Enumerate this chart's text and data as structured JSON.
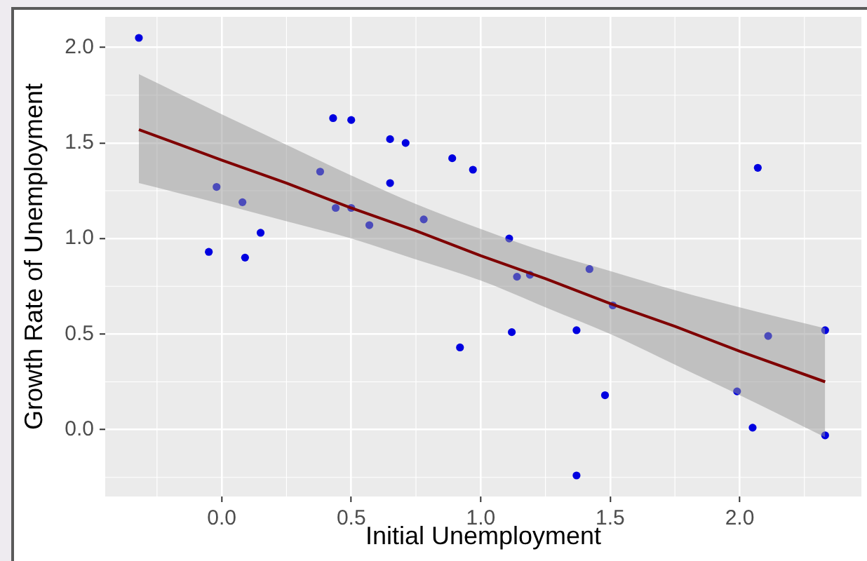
{
  "chart_data": {
    "type": "scatter",
    "xlabel": "Initial Unemployment",
    "ylabel": "Growth Rate of Unemployment",
    "xlim": [
      -0.45,
      2.47
    ],
    "ylim": [
      -0.35,
      2.16
    ],
    "xticks": [
      {
        "value": 0,
        "label": "0.0"
      },
      0.5,
      {
        "value": 1,
        "label": "1.0"
      },
      1.5,
      {
        "value": 2,
        "label": "2.0"
      }
    ],
    "yticks": [
      {
        "value": 0,
        "label": "0.0"
      },
      0.5,
      {
        "value": 1,
        "label": "1.0"
      },
      1.5,
      {
        "value": 2,
        "label": "2.0"
      }
    ],
    "grid": true,
    "marker": "circle",
    "line_style": "solid",
    "series": [
      {
        "color": "#0000e0",
        "x": [
          -0.32,
          -0.05,
          -0.02,
          0.08,
          0.09,
          0.15,
          0.38,
          0.43,
          0.44,
          0.5,
          0.5,
          0.57,
          0.65,
          0.65,
          0.71,
          0.78,
          0.89,
          0.97,
          2.07,
          1.11,
          1.42,
          1.14,
          1.19,
          1.51,
          1.12,
          0.92,
          1.37,
          1.48,
          1.37,
          1.99,
          2.05,
          2.11,
          2.33,
          2.33
        ],
        "values": [
          2.05,
          0.93,
          1.27,
          1.19,
          0.9,
          1.03,
          1.35,
          1.63,
          1.16,
          1.62,
          1.16,
          1.07,
          1.52,
          1.29,
          1.5,
          1.1,
          1.42,
          1.36,
          1.37,
          1.0,
          0.84,
          0.8,
          0.81,
          0.65,
          0.51,
          0.43,
          0.52,
          0.18,
          -0.24,
          0.2,
          0.01,
          0.49,
          0.52,
          -0.03
        ]
      },
      {
        "type": "line",
        "marker": "none",
        "color": "#7f0000",
        "x": [
          -0.32,
          0,
          0.25,
          0.5,
          0.75,
          1,
          1.25,
          1.5,
          1.75,
          2,
          2.33
        ],
        "values": [
          1.57,
          1.41,
          1.29,
          1.16,
          1.04,
          0.91,
          0.79,
          0.66,
          0.54,
          0.41,
          0.25
        ],
        "lower": [
          1.29,
          1.18,
          1.09,
          1.0,
          0.89,
          0.78,
          0.64,
          0.5,
          0.34,
          0.18,
          -0.04
        ],
        "upper": [
          1.86,
          1.65,
          1.49,
          1.33,
          1.18,
          1.05,
          0.93,
          0.83,
          0.73,
          0.64,
          0.53
        ]
      }
    ]
  }
}
